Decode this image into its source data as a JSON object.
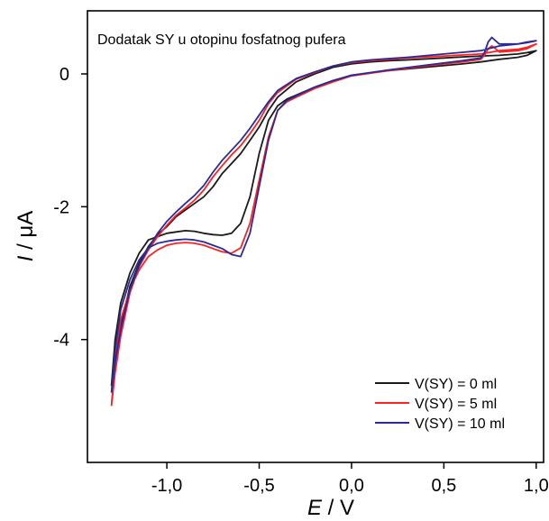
{
  "chart_data": {
    "type": "line",
    "title": "",
    "annotation": "Dodatak SY u otopinu fosfatnog pufera",
    "xlabel": {
      "italic": "E",
      "rest": " / V"
    },
    "ylabel": {
      "italic": "I",
      "rest": " / μA"
    },
    "xlim": [
      -1.43,
      1.04
    ],
    "ylim": [
      -5.85,
      0.95
    ],
    "xticks": [
      -1.0,
      -0.5,
      0.0,
      0.5,
      1.0
    ],
    "xtick_labels": [
      "-1,0",
      "-0,5",
      "0,0",
      "0,5",
      "1,0"
    ],
    "yticks": [
      0,
      -2,
      -4
    ],
    "ytick_labels": [
      "0",
      "-2",
      "-4"
    ],
    "grid": false,
    "legend_position": "bottom-right",
    "series": [
      {
        "name": "V(SY) = 0 ml",
        "color": "#1a1a1a",
        "points": [
          [
            -1.3,
            -4.7
          ],
          [
            -1.28,
            -4.0
          ],
          [
            -1.25,
            -3.45
          ],
          [
            -1.2,
            -3.0
          ],
          [
            -1.15,
            -2.7
          ],
          [
            -1.1,
            -2.5
          ],
          [
            -1.05,
            -2.45
          ],
          [
            -1.0,
            -2.4
          ],
          [
            -0.95,
            -2.38
          ],
          [
            -0.9,
            -2.36
          ],
          [
            -0.85,
            -2.37
          ],
          [
            -0.8,
            -2.4
          ],
          [
            -0.75,
            -2.42
          ],
          [
            -0.7,
            -2.43
          ],
          [
            -0.65,
            -2.4
          ],
          [
            -0.6,
            -2.25
          ],
          [
            -0.55,
            -1.85
          ],
          [
            -0.5,
            -1.2
          ],
          [
            -0.45,
            -0.7
          ],
          [
            -0.4,
            -0.48
          ],
          [
            -0.35,
            -0.38
          ],
          [
            -0.3,
            -0.32
          ],
          [
            -0.2,
            -0.2
          ],
          [
            -0.1,
            -0.1
          ],
          [
            0.0,
            -0.02
          ],
          [
            0.2,
            0.05
          ],
          [
            0.4,
            0.1
          ],
          [
            0.6,
            0.15
          ],
          [
            0.7,
            0.18
          ],
          [
            0.8,
            0.22
          ],
          [
            0.9,
            0.25
          ],
          [
            0.95,
            0.28
          ],
          [
            1.0,
            0.35
          ],
          [
            0.95,
            0.32
          ],
          [
            0.9,
            0.3
          ],
          [
            0.8,
            0.28
          ],
          [
            0.7,
            0.27
          ],
          [
            0.5,
            0.24
          ],
          [
            0.3,
            0.21
          ],
          [
            0.2,
            0.2
          ],
          [
            0.1,
            0.18
          ],
          [
            0.0,
            0.15
          ],
          [
            -0.1,
            0.1
          ],
          [
            -0.2,
            0.0
          ],
          [
            -0.3,
            -0.12
          ],
          [
            -0.4,
            -0.35
          ],
          [
            -0.45,
            -0.55
          ],
          [
            -0.5,
            -0.8
          ],
          [
            -0.55,
            -1.0
          ],
          [
            -0.6,
            -1.2
          ],
          [
            -0.65,
            -1.35
          ],
          [
            -0.7,
            -1.5
          ],
          [
            -0.75,
            -1.7
          ],
          [
            -0.8,
            -1.85
          ],
          [
            -0.85,
            -1.95
          ],
          [
            -0.9,
            -2.05
          ],
          [
            -0.95,
            -2.15
          ],
          [
            -1.0,
            -2.3
          ],
          [
            -1.05,
            -2.42
          ],
          [
            -1.1,
            -2.6
          ],
          [
            -1.15,
            -2.85
          ],
          [
            -1.2,
            -3.2
          ],
          [
            -1.25,
            -3.8
          ],
          [
            -1.28,
            -4.3
          ],
          [
            -1.3,
            -4.7
          ]
        ]
      },
      {
        "name": "V(SY) = 5 ml",
        "color": "#ff2020",
        "points": [
          [
            -1.3,
            -5.0
          ],
          [
            -1.28,
            -4.3
          ],
          [
            -1.25,
            -3.7
          ],
          [
            -1.2,
            -3.25
          ],
          [
            -1.15,
            -2.95
          ],
          [
            -1.1,
            -2.75
          ],
          [
            -1.05,
            -2.65
          ],
          [
            -1.0,
            -2.58
          ],
          [
            -0.95,
            -2.55
          ],
          [
            -0.9,
            -2.54
          ],
          [
            -0.85,
            -2.55
          ],
          [
            -0.8,
            -2.58
          ],
          [
            -0.75,
            -2.63
          ],
          [
            -0.7,
            -2.68
          ],
          [
            -0.65,
            -2.7
          ],
          [
            -0.6,
            -2.62
          ],
          [
            -0.55,
            -2.25
          ],
          [
            -0.5,
            -1.6
          ],
          [
            -0.45,
            -0.95
          ],
          [
            -0.4,
            -0.55
          ],
          [
            -0.35,
            -0.42
          ],
          [
            -0.3,
            -0.35
          ],
          [
            -0.2,
            -0.22
          ],
          [
            -0.1,
            -0.12
          ],
          [
            0.0,
            -0.03
          ],
          [
            0.2,
            0.05
          ],
          [
            0.4,
            0.12
          ],
          [
            0.6,
            0.18
          ],
          [
            0.7,
            0.22
          ],
          [
            0.72,
            0.28
          ],
          [
            0.74,
            0.38
          ],
          [
            0.76,
            0.42
          ],
          [
            0.78,
            0.38
          ],
          [
            0.8,
            0.33
          ],
          [
            0.9,
            0.35
          ],
          [
            0.95,
            0.38
          ],
          [
            1.0,
            0.45
          ],
          [
            0.95,
            0.4
          ],
          [
            0.9,
            0.37
          ],
          [
            0.8,
            0.35
          ],
          [
            0.7,
            0.3
          ],
          [
            0.5,
            0.27
          ],
          [
            0.3,
            0.24
          ],
          [
            0.2,
            0.22
          ],
          [
            0.1,
            0.2
          ],
          [
            0.0,
            0.17
          ],
          [
            -0.1,
            0.12
          ],
          [
            -0.2,
            0.02
          ],
          [
            -0.3,
            -0.08
          ],
          [
            -0.4,
            -0.28
          ],
          [
            -0.45,
            -0.45
          ],
          [
            -0.5,
            -0.7
          ],
          [
            -0.55,
            -0.9
          ],
          [
            -0.6,
            -1.08
          ],
          [
            -0.65,
            -1.22
          ],
          [
            -0.7,
            -1.38
          ],
          [
            -0.75,
            -1.55
          ],
          [
            -0.8,
            -1.75
          ],
          [
            -0.85,
            -1.9
          ],
          [
            -0.9,
            -2.02
          ],
          [
            -0.95,
            -2.13
          ],
          [
            -1.0,
            -2.28
          ],
          [
            -1.05,
            -2.45
          ],
          [
            -1.1,
            -2.65
          ],
          [
            -1.15,
            -2.9
          ],
          [
            -1.2,
            -3.3
          ],
          [
            -1.25,
            -3.95
          ],
          [
            -1.28,
            -4.5
          ],
          [
            -1.3,
            -5.0
          ]
        ]
      },
      {
        "name": "V(SY) = 10 ml",
        "color": "#2a2a99",
        "points": [
          [
            -1.3,
            -4.8
          ],
          [
            -1.28,
            -4.15
          ],
          [
            -1.25,
            -3.55
          ],
          [
            -1.2,
            -3.1
          ],
          [
            -1.15,
            -2.8
          ],
          [
            -1.1,
            -2.62
          ],
          [
            -1.05,
            -2.55
          ],
          [
            -1.0,
            -2.52
          ],
          [
            -0.95,
            -2.5
          ],
          [
            -0.9,
            -2.49
          ],
          [
            -0.85,
            -2.5
          ],
          [
            -0.8,
            -2.53
          ],
          [
            -0.75,
            -2.58
          ],
          [
            -0.7,
            -2.63
          ],
          [
            -0.65,
            -2.72
          ],
          [
            -0.6,
            -2.75
          ],
          [
            -0.55,
            -2.4
          ],
          [
            -0.5,
            -1.7
          ],
          [
            -0.45,
            -1.0
          ],
          [
            -0.4,
            -0.55
          ],
          [
            -0.35,
            -0.4
          ],
          [
            -0.3,
            -0.33
          ],
          [
            -0.2,
            -0.2
          ],
          [
            -0.1,
            -0.1
          ],
          [
            0.0,
            -0.02
          ],
          [
            0.2,
            0.06
          ],
          [
            0.4,
            0.13
          ],
          [
            0.6,
            0.2
          ],
          [
            0.7,
            0.24
          ],
          [
            0.72,
            0.32
          ],
          [
            0.74,
            0.48
          ],
          [
            0.76,
            0.55
          ],
          [
            0.78,
            0.5
          ],
          [
            0.8,
            0.45
          ],
          [
            0.9,
            0.45
          ],
          [
            0.95,
            0.48
          ],
          [
            1.0,
            0.5
          ],
          [
            0.95,
            0.47
          ],
          [
            0.9,
            0.45
          ],
          [
            0.8,
            0.42
          ],
          [
            0.7,
            0.35
          ],
          [
            0.5,
            0.3
          ],
          [
            0.3,
            0.25
          ],
          [
            0.2,
            0.23
          ],
          [
            0.1,
            0.21
          ],
          [
            0.0,
            0.18
          ],
          [
            -0.1,
            0.12
          ],
          [
            -0.2,
            0.03
          ],
          [
            -0.3,
            -0.07
          ],
          [
            -0.4,
            -0.25
          ],
          [
            -0.45,
            -0.42
          ],
          [
            -0.5,
            -0.62
          ],
          [
            -0.55,
            -0.82
          ],
          [
            -0.6,
            -1.0
          ],
          [
            -0.65,
            -1.15
          ],
          [
            -0.7,
            -1.3
          ],
          [
            -0.75,
            -1.48
          ],
          [
            -0.8,
            -1.68
          ],
          [
            -0.85,
            -1.83
          ],
          [
            -0.9,
            -1.95
          ],
          [
            -0.95,
            -2.08
          ],
          [
            -1.0,
            -2.22
          ],
          [
            -1.05,
            -2.4
          ],
          [
            -1.1,
            -2.62
          ],
          [
            -1.15,
            -2.88
          ],
          [
            -1.2,
            -3.25
          ],
          [
            -1.25,
            -3.85
          ],
          [
            -1.28,
            -4.35
          ],
          [
            -1.3,
            -4.8
          ]
        ]
      }
    ]
  }
}
